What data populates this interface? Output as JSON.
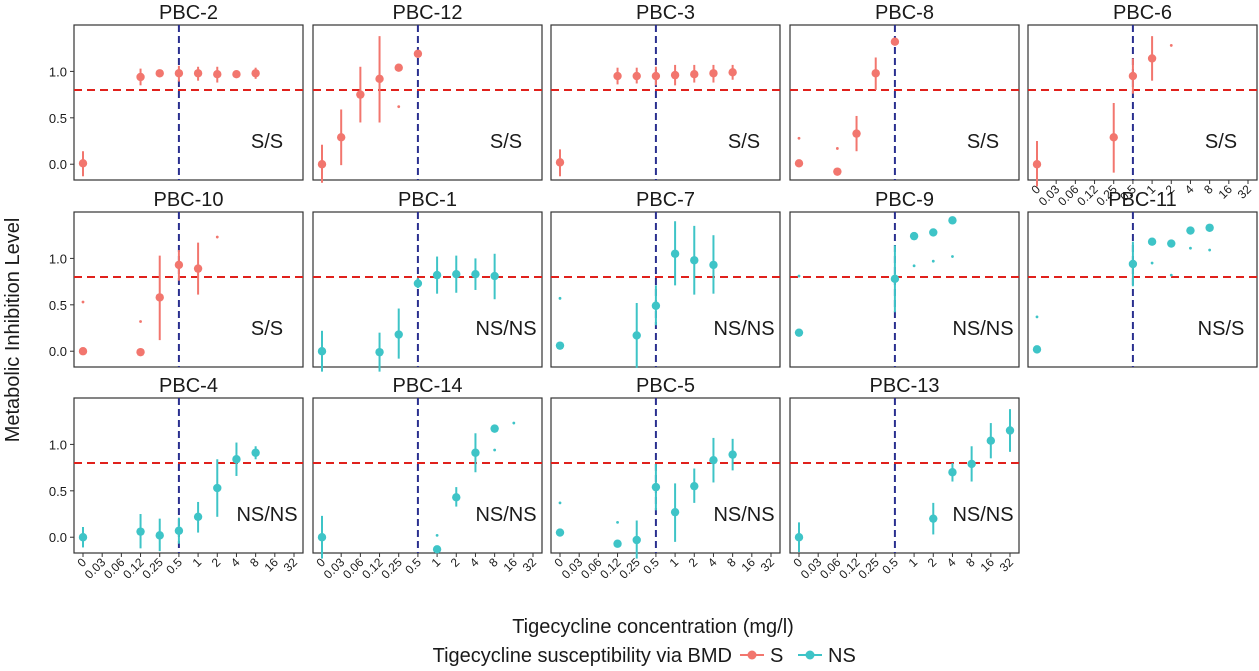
{
  "colors": {
    "S": "#F2766E",
    "NS": "#3EC4C7",
    "threshold": "#E0211C",
    "breakpoint": "#2A2F8F"
  },
  "chart_data": {
    "type": "scatter",
    "xlabel": "Tigecycline concentration (mg/l)",
    "ylabel": "Metabolic Inhibition Level",
    "x_ticks": [
      "0",
      "0.03",
      "0.06",
      "0.12",
      "0.25",
      "0.5",
      "1",
      "2",
      "4",
      "8",
      "16",
      "32"
    ],
    "y_ticks": [
      0.0,
      0.5,
      1.0
    ],
    "y_tick_labels": [
      "0.0",
      "0.5",
      "1.0"
    ],
    "ylim": [
      -0.17,
      1.5
    ],
    "threshold_y": 0.8,
    "breakpoint_x": "0.5",
    "grid": false,
    "legend": {
      "title": "Tigecycline susceptibility via BMD",
      "position": "bottom",
      "entries": [
        "S",
        "NS"
      ]
    },
    "panels": [
      {
        "title": "PBC-2",
        "group": "S",
        "label": "S/S",
        "points": [
          {
            "x": "0",
            "y": 0.01,
            "lo": -0.13,
            "hi": 0.14
          },
          {
            "x": "0.12",
            "y": 0.94,
            "lo": 0.85,
            "hi": 1.03
          },
          {
            "x": "0.25",
            "y": 0.98
          },
          {
            "x": "0.5",
            "y": 0.98,
            "lo": 0.89,
            "hi": 1.06
          },
          {
            "x": "1",
            "y": 0.98,
            "lo": 0.9,
            "hi": 1.05
          },
          {
            "x": "2",
            "y": 0.97,
            "lo": 0.88,
            "hi": 1.05
          },
          {
            "x": "4",
            "y": 0.97
          },
          {
            "x": "8",
            "y": 0.98,
            "lo": 0.92,
            "hi": 1.04
          }
        ]
      },
      {
        "title": "PBC-12",
        "group": "S",
        "label": "S/S",
        "points": [
          {
            "x": "0",
            "y": 0.0,
            "lo": -0.2,
            "hi": 0.21
          },
          {
            "x": "0.03",
            "y": 0.29,
            "lo": -0.01,
            "hi": 0.59
          },
          {
            "x": "0.06",
            "y": 0.75,
            "lo": 0.45,
            "hi": 1.05
          },
          {
            "x": "0.12",
            "y": 0.92,
            "lo": 0.45,
            "hi": 1.38
          },
          {
            "x": "0.25",
            "y": 1.04
          },
          {
            "x": "0.25",
            "y": 0.62,
            "small": true
          },
          {
            "x": "0.5",
            "y": 1.19
          }
        ]
      },
      {
        "title": "PBC-3",
        "group": "S",
        "label": "S/S",
        "points": [
          {
            "x": "0",
            "y": 0.02,
            "lo": -0.13,
            "hi": 0.16
          },
          {
            "x": "0.12",
            "y": 0.95,
            "lo": 0.86,
            "hi": 1.04
          },
          {
            "x": "0.25",
            "y": 0.95,
            "lo": 0.87,
            "hi": 1.04
          },
          {
            "x": "0.5",
            "y": 0.95,
            "lo": 0.85,
            "hi": 1.05
          },
          {
            "x": "1",
            "y": 0.96,
            "lo": 0.85,
            "hi": 1.07
          },
          {
            "x": "2",
            "y": 0.97,
            "lo": 0.88,
            "hi": 1.07
          },
          {
            "x": "4",
            "y": 0.98,
            "lo": 0.88,
            "hi": 1.07
          },
          {
            "x": "8",
            "y": 0.99,
            "lo": 0.91,
            "hi": 1.07
          }
        ]
      },
      {
        "title": "PBC-8",
        "group": "S",
        "label": "S/S",
        "points": [
          {
            "x": "0",
            "y": 0.28,
            "small": true
          },
          {
            "x": "0",
            "y": 0.01
          },
          {
            "x": "0.06",
            "y": -0.08
          },
          {
            "x": "0.06",
            "y": 0.17,
            "small": true
          },
          {
            "x": "0.12",
            "y": 0.33,
            "lo": 0.14,
            "hi": 0.52
          },
          {
            "x": "0.25",
            "y": 0.98,
            "lo": 0.8,
            "hi": 1.15
          },
          {
            "x": "0.5",
            "y": 1.32,
            "lo": 1.28,
            "hi": 1.36
          }
        ]
      },
      {
        "title": "PBC-6",
        "group": "S",
        "label": "S/S",
        "points": [
          {
            "x": "0",
            "y": 0.0,
            "lo": -0.24,
            "hi": 0.25
          },
          {
            "x": "0.25",
            "y": 0.29,
            "lo": -0.09,
            "hi": 0.66
          },
          {
            "x": "0.5",
            "y": 0.95,
            "lo": 0.76,
            "hi": 1.14
          },
          {
            "x": "1",
            "y": 1.14,
            "lo": 0.9,
            "hi": 1.38
          },
          {
            "x": "2",
            "y": 1.28,
            "small": true
          }
        ]
      },
      {
        "title": "PBC-10",
        "group": "S",
        "label": "S/S",
        "points": [
          {
            "x": "0",
            "y": 0.53,
            "small": true
          },
          {
            "x": "0",
            "y": 0.0
          },
          {
            "x": "0.12",
            "y": 0.32,
            "small": true
          },
          {
            "x": "0.12",
            "y": -0.01
          },
          {
            "x": "0.25",
            "y": 0.58,
            "lo": 0.12,
            "hi": 1.03
          },
          {
            "x": "0.5",
            "y": 0.93,
            "lo": 0.76,
            "hi": 1.09
          },
          {
            "x": "1",
            "y": 0.89,
            "lo": 0.61,
            "hi": 1.17
          },
          {
            "x": "2",
            "y": 1.23,
            "small": true
          }
        ]
      },
      {
        "title": "PBC-1",
        "group": "NS",
        "label": "NS/NS",
        "points": [
          {
            "x": "0",
            "y": 0.0,
            "lo": -0.22,
            "hi": 0.22
          },
          {
            "x": "0.12",
            "y": -0.01,
            "lo": -0.22,
            "hi": 0.2
          },
          {
            "x": "0.25",
            "y": 0.18,
            "lo": -0.08,
            "hi": 0.46
          },
          {
            "x": "0.5",
            "y": 0.73,
            "lo": 0.68,
            "hi": 0.79
          },
          {
            "x": "1",
            "y": 0.82,
            "lo": 0.62,
            "hi": 1.02
          },
          {
            "x": "2",
            "y": 0.83,
            "lo": 0.63,
            "hi": 1.03
          },
          {
            "x": "4",
            "y": 0.83,
            "lo": 0.66,
            "hi": 1.0
          },
          {
            "x": "8",
            "y": 0.81,
            "lo": 0.56,
            "hi": 1.05
          }
        ]
      },
      {
        "title": "PBC-7",
        "group": "NS",
        "label": "NS/NS",
        "points": [
          {
            "x": "0",
            "y": 0.57,
            "small": true
          },
          {
            "x": "0",
            "y": 0.06
          },
          {
            "x": "0.25",
            "y": 0.17,
            "lo": -0.18,
            "hi": 0.52
          },
          {
            "x": "0.5",
            "y": 0.49,
            "lo": 0.28,
            "hi": 0.71
          },
          {
            "x": "1",
            "y": 1.05,
            "lo": 0.71,
            "hi": 1.4
          },
          {
            "x": "2",
            "y": 0.98,
            "lo": 0.61,
            "hi": 1.35
          },
          {
            "x": "4",
            "y": 0.93,
            "lo": 0.62,
            "hi": 1.25
          }
        ]
      },
      {
        "title": "PBC-9",
        "group": "NS",
        "label": "NS/NS",
        "points": [
          {
            "x": "0",
            "y": 0.81,
            "small": true
          },
          {
            "x": "0",
            "y": 0.2
          },
          {
            "x": "0.5",
            "y": 0.78,
            "lo": 0.42,
            "hi": 1.14
          },
          {
            "x": "1",
            "y": 1.24
          },
          {
            "x": "1",
            "y": 0.92,
            "small": true
          },
          {
            "x": "2",
            "y": 1.28
          },
          {
            "x": "2",
            "y": 0.97,
            "small": true
          },
          {
            "x": "4",
            "y": 1.41
          },
          {
            "x": "4",
            "y": 1.02,
            "small": true
          }
        ]
      },
      {
        "title": "PBC-11",
        "group": "NS",
        "label": "NS/S",
        "points": [
          {
            "x": "0",
            "y": 0.37,
            "small": true
          },
          {
            "x": "0",
            "y": 0.02
          },
          {
            "x": "0.5",
            "y": 0.94,
            "lo": 0.7,
            "hi": 1.18
          },
          {
            "x": "1",
            "y": 1.18
          },
          {
            "x": "1",
            "y": 0.95,
            "small": true
          },
          {
            "x": "2",
            "y": 1.16
          },
          {
            "x": "2",
            "y": 0.82,
            "small": true
          },
          {
            "x": "4",
            "y": 1.3
          },
          {
            "x": "4",
            "y": 1.11,
            "small": true
          },
          {
            "x": "8",
            "y": 1.33
          },
          {
            "x": "8",
            "y": 1.09,
            "small": true
          }
        ]
      },
      {
        "title": "PBC-4",
        "group": "NS",
        "label": "NS/NS",
        "points": [
          {
            "x": "0",
            "y": 0.0,
            "lo": -0.11,
            "hi": 0.11
          },
          {
            "x": "0.12",
            "y": 0.06,
            "lo": -0.12,
            "hi": 0.25
          },
          {
            "x": "0.25",
            "y": 0.02,
            "lo": -0.15,
            "hi": 0.2
          },
          {
            "x": "0.5",
            "y": 0.07,
            "lo": -0.07,
            "hi": 0.21
          },
          {
            "x": "1",
            "y": 0.22,
            "lo": 0.05,
            "hi": 0.38
          },
          {
            "x": "2",
            "y": 0.53,
            "lo": 0.22,
            "hi": 0.84
          },
          {
            "x": "4",
            "y": 0.84,
            "lo": 0.66,
            "hi": 1.02
          },
          {
            "x": "8",
            "y": 0.91,
            "lo": 0.84,
            "hi": 0.98
          }
        ]
      },
      {
        "title": "PBC-14",
        "group": "NS",
        "label": "NS/NS",
        "points": [
          {
            "x": "0",
            "y": 0.0,
            "lo": -0.23,
            "hi": 0.23
          },
          {
            "x": "1",
            "y": -0.13
          },
          {
            "x": "1",
            "y": 0.02,
            "small": true
          },
          {
            "x": "2",
            "y": 0.43,
            "lo": 0.33,
            "hi": 0.54
          },
          {
            "x": "4",
            "y": 0.91,
            "lo": 0.7,
            "hi": 1.12
          },
          {
            "x": "8",
            "y": 1.17
          },
          {
            "x": "8",
            "y": 0.94,
            "small": true
          },
          {
            "x": "16",
            "y": 1.23,
            "small": true
          }
        ]
      },
      {
        "title": "PBC-5",
        "group": "NS",
        "label": "NS/NS",
        "points": [
          {
            "x": "0",
            "y": 0.37,
            "small": true
          },
          {
            "x": "0",
            "y": 0.05
          },
          {
            "x": "0.12",
            "y": 0.16,
            "small": true
          },
          {
            "x": "0.12",
            "y": -0.07
          },
          {
            "x": "0.25",
            "y": -0.03,
            "lo": -0.23,
            "hi": 0.18
          },
          {
            "x": "0.5",
            "y": 0.54,
            "lo": 0.29,
            "hi": 0.79
          },
          {
            "x": "1",
            "y": 0.27,
            "lo": -0.05,
            "hi": 0.58
          },
          {
            "x": "2",
            "y": 0.55,
            "lo": 0.37,
            "hi": 0.74
          },
          {
            "x": "4",
            "y": 0.83,
            "lo": 0.59,
            "hi": 1.07
          },
          {
            "x": "8",
            "y": 0.89,
            "lo": 0.72,
            "hi": 1.06
          }
        ]
      },
      {
        "title": "PBC-13",
        "group": "NS",
        "label": "NS/NS",
        "points": [
          {
            "x": "0",
            "y": 0.0,
            "lo": -0.16,
            "hi": 0.16
          },
          {
            "x": "2",
            "y": 0.2,
            "lo": 0.03,
            "hi": 0.37
          },
          {
            "x": "4",
            "y": 0.7,
            "lo": 0.6,
            "hi": 0.8
          },
          {
            "x": "8",
            "y": 0.79,
            "lo": 0.6,
            "hi": 0.98
          },
          {
            "x": "16",
            "y": 1.04,
            "lo": 0.85,
            "hi": 1.23
          },
          {
            "x": "32",
            "y": 1.15,
            "lo": 0.92,
            "hi": 1.38
          }
        ]
      }
    ]
  }
}
